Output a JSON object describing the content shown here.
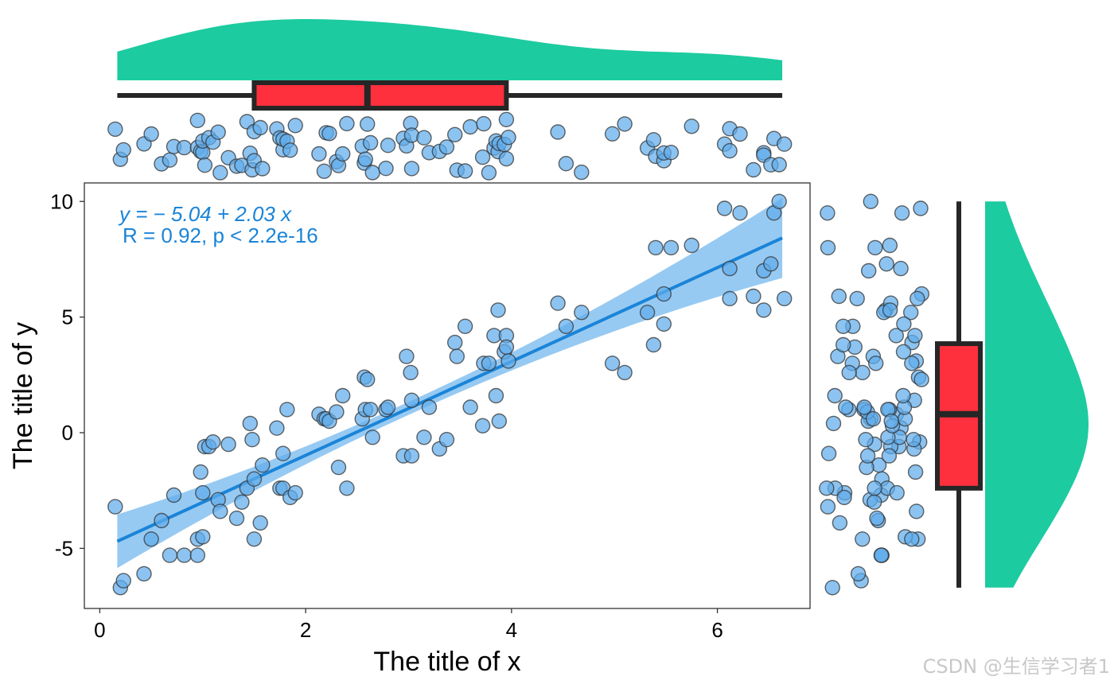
{
  "chart_data": {
    "type": "scatter",
    "title": "",
    "xlabel": "The title of x",
    "ylabel": "The title of y",
    "xlim": [
      -0.15,
      6.9
    ],
    "ylim": [
      -7.6,
      10.8
    ],
    "xticks": [
      {
        "value": 0,
        "label": "0"
      },
      {
        "value": 2,
        "label": "2"
      },
      {
        "value": 4,
        "label": "4"
      },
      {
        "value": 6,
        "label": "6"
      }
    ],
    "yticks": [
      {
        "value": -5,
        "label": "-5"
      },
      {
        "value": 0,
        "label": "0"
      },
      {
        "value": 5,
        "label": "5"
      },
      {
        "value": 10,
        "label": "10"
      }
    ],
    "grid": false,
    "legend": "none",
    "annotation": {
      "equation": "y = − 5.04 + 2.03 x",
      "correlation": "R = 0.92, p < 2.2e-16"
    },
    "regression": {
      "intercept": -5.04,
      "slope": 2.03,
      "x_start": 0.17,
      "x_end": 6.63
    },
    "x_box": {
      "min": 0.17,
      "q1": 1.5,
      "median": 2.6,
      "q3": 3.95,
      "max": 6.63
    },
    "y_box": {
      "min": -6.7,
      "q1": -2.4,
      "median": 0.8,
      "q3": 3.85,
      "max": 10.0
    },
    "colors": {
      "point_fill": "#60acea",
      "point_stroke": "#333333",
      "line": "#1a84d8",
      "band": "#8cc4f1",
      "density": "#1dcba0",
      "box_fill": "#fe303d",
      "box_stroke": "#262626"
    },
    "points": [
      {
        "x": 0.15,
        "y": -3.2
      },
      {
        "x": 0.2,
        "y": -6.7
      },
      {
        "x": 0.23,
        "y": -6.4
      },
      {
        "x": 0.43,
        "y": -6.1
      },
      {
        "x": 0.5,
        "y": -4.6
      },
      {
        "x": 0.6,
        "y": -3.8
      },
      {
        "x": 0.68,
        "y": -5.3
      },
      {
        "x": 0.72,
        "y": -2.7
      },
      {
        "x": 0.82,
        "y": -5.3
      },
      {
        "x": 0.95,
        "y": -5.3
      },
      {
        "x": 0.95,
        "y": -4.6
      },
      {
        "x": 0.98,
        "y": -1.7
      },
      {
        "x": 1.0,
        "y": -4.5
      },
      {
        "x": 1.0,
        "y": -2.6
      },
      {
        "x": 1.02,
        "y": -0.6
      },
      {
        "x": 1.06,
        "y": -0.6
      },
      {
        "x": 1.1,
        "y": -0.4
      },
      {
        "x": 1.15,
        "y": -2.9
      },
      {
        "x": 1.17,
        "y": -3.4
      },
      {
        "x": 1.25,
        "y": -0.5
      },
      {
        "x": 1.33,
        "y": -3.7
      },
      {
        "x": 1.38,
        "y": -3.0
      },
      {
        "x": 1.43,
        "y": -2.4
      },
      {
        "x": 1.46,
        "y": 0.4
      },
      {
        "x": 1.48,
        "y": -0.3
      },
      {
        "x": 1.5,
        "y": -4.6
      },
      {
        "x": 1.5,
        "y": -2.0
      },
      {
        "x": 1.56,
        "y": -3.9
      },
      {
        "x": 1.58,
        "y": -1.4
      },
      {
        "x": 1.72,
        "y": 0.2
      },
      {
        "x": 1.75,
        "y": -2.4
      },
      {
        "x": 1.78,
        "y": -2.4
      },
      {
        "x": 1.78,
        "y": -0.9
      },
      {
        "x": 1.82,
        "y": 1.0
      },
      {
        "x": 1.85,
        "y": -2.8
      },
      {
        "x": 1.9,
        "y": -2.6
      },
      {
        "x": 2.13,
        "y": 0.8
      },
      {
        "x": 2.18,
        "y": 0.6
      },
      {
        "x": 2.2,
        "y": 0.6
      },
      {
        "x": 2.23,
        "y": 0.5
      },
      {
        "x": 2.3,
        "y": 0.9
      },
      {
        "x": 2.32,
        "y": -1.5
      },
      {
        "x": 2.36,
        "y": 1.6
      },
      {
        "x": 2.4,
        "y": -2.4
      },
      {
        "x": 2.55,
        "y": 0.6
      },
      {
        "x": 2.57,
        "y": 2.4
      },
      {
        "x": 2.58,
        "y": 1.0
      },
      {
        "x": 2.6,
        "y": 2.3
      },
      {
        "x": 2.63,
        "y": 1.0
      },
      {
        "x": 2.65,
        "y": -0.2
      },
      {
        "x": 2.78,
        "y": 1.0
      },
      {
        "x": 2.8,
        "y": 1.1
      },
      {
        "x": 2.95,
        "y": -1.0
      },
      {
        "x": 2.98,
        "y": 3.3
      },
      {
        "x": 3.02,
        "y": 2.6
      },
      {
        "x": 3.03,
        "y": -1.0
      },
      {
        "x": 3.03,
        "y": 1.4
      },
      {
        "x": 3.15,
        "y": -0.2
      },
      {
        "x": 3.2,
        "y": 1.1
      },
      {
        "x": 3.3,
        "y": -0.7
      },
      {
        "x": 3.37,
        "y": -0.3
      },
      {
        "x": 3.45,
        "y": 3.9
      },
      {
        "x": 3.47,
        "y": 3.3
      },
      {
        "x": 3.55,
        "y": 4.6
      },
      {
        "x": 3.6,
        "y": 1.1
      },
      {
        "x": 3.72,
        "y": 0.3
      },
      {
        "x": 3.73,
        "y": 3.0
      },
      {
        "x": 3.78,
        "y": 3.0
      },
      {
        "x": 3.83,
        "y": 4.2
      },
      {
        "x": 3.85,
        "y": 1.6
      },
      {
        "x": 3.87,
        "y": 5.3
      },
      {
        "x": 3.88,
        "y": 0.5
      },
      {
        "x": 3.93,
        "y": 3.5
      },
      {
        "x": 3.95,
        "y": 4.2
      },
      {
        "x": 3.95,
        "y": 3.7
      },
      {
        "x": 3.97,
        "y": 3.1
      },
      {
        "x": 4.45,
        "y": 5.6
      },
      {
        "x": 4.53,
        "y": 4.6
      },
      {
        "x": 4.68,
        "y": 5.2
      },
      {
        "x": 4.98,
        "y": 3.0
      },
      {
        "x": 5.1,
        "y": 2.6
      },
      {
        "x": 5.32,
        "y": 5.2
      },
      {
        "x": 5.38,
        "y": 3.8
      },
      {
        "x": 5.4,
        "y": 8.0
      },
      {
        "x": 5.48,
        "y": 6.0
      },
      {
        "x": 5.48,
        "y": 4.7
      },
      {
        "x": 5.55,
        "y": 8.0
      },
      {
        "x": 5.75,
        "y": 8.1
      },
      {
        "x": 6.07,
        "y": 9.7
      },
      {
        "x": 6.12,
        "y": 5.8
      },
      {
        "x": 6.12,
        "y": 7.1
      },
      {
        "x": 6.22,
        "y": 9.5
      },
      {
        "x": 6.35,
        "y": 5.9
      },
      {
        "x": 6.45,
        "y": 5.3
      },
      {
        "x": 6.45,
        "y": 7.0
      },
      {
        "x": 6.52,
        "y": 7.3
      },
      {
        "x": 6.55,
        "y": 9.5
      },
      {
        "x": 6.6,
        "y": 10.0
      },
      {
        "x": 6.65,
        "y": 5.8
      }
    ]
  },
  "watermark": "CSDN @生信学习者1"
}
